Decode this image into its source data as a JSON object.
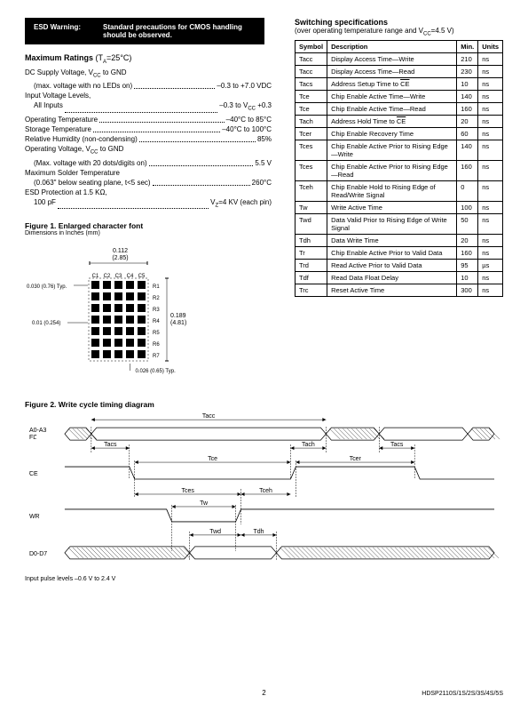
{
  "esd": {
    "label": "ESD Warning:",
    "text": "Standard precautions for CMOS handling should be observed."
  },
  "maxRatings": {
    "title": "Maximum Ratings",
    "cond": "(T",
    "condSub": "A",
    "condRest": "=25°C)",
    "lines": [
      {
        "label": "DC Supply Voltage, V",
        "sub": "CC",
        "labelRest": " to GND",
        "value": "",
        "hasDots": false
      },
      {
        "label": "(max. voltage with no LEDs on)",
        "value": "–0.3 to +7.0 VDC",
        "indent": true,
        "hasDots": true
      },
      {
        "label": "Input Voltage Levels,",
        "value": "",
        "hasDots": false
      },
      {
        "label": "All Inputs",
        "value": "–0.3 to V",
        "valueSub": "CC",
        "valueRest": " +0.3",
        "indent": true,
        "hasDots": true
      },
      {
        "label": "Operating Temperature",
        "value": "–40°C to 85°C",
        "hasDots": true
      },
      {
        "label": "Storage Temperature",
        "value": "–40°C to 100°C",
        "hasDots": true
      },
      {
        "label": "Relative Humidity (non-condensing)",
        "value": "85%",
        "hasDots": true
      },
      {
        "label": "Operating Voltage, V",
        "sub": "CC",
        "labelRest": " to GND",
        "value": "",
        "hasDots": false
      },
      {
        "label": "(Max. voltage with 20 dots/digits on)",
        "value": "5.5 V",
        "indent": true,
        "hasDots": true
      },
      {
        "label": "Maximum Solder Temperature",
        "value": "",
        "hasDots": false
      },
      {
        "label": "(0.063\" below seating plane, t<5 sec)",
        "value": "260°C",
        "indent": true,
        "hasDots": true
      },
      {
        "label": "ESD Protection at 1.5 KΩ,",
        "value": "",
        "hasDots": false
      },
      {
        "label": "100 pF",
        "value": "V",
        "valueSub": "Z",
        "valueRest": "=4 KV (each pin)",
        "indent": true,
        "hasDots": true
      }
    ]
  },
  "switching": {
    "title": "Switching specifications",
    "sub": "(over operating temperature range and V",
    "subSub": "CC",
    "subRest": "=4.5 V)",
    "headers": [
      "Symbol",
      "Description",
      "Min.",
      "Units"
    ],
    "rows": [
      {
        "sym": "Tacc",
        "desc": "Display Access Time—Write",
        "min": "210",
        "units": "ns"
      },
      {
        "sym": "Tacc",
        "desc": "Display Access Time—Read",
        "min": "230",
        "units": "ns"
      },
      {
        "sym": "Tacs",
        "desc": "Address Setup Time to CE",
        "min": "10",
        "units": "ns",
        "overline": "CE"
      },
      {
        "sym": "Tce",
        "desc": "Chip Enable Active Time—Write",
        "min": "140",
        "units": "ns"
      },
      {
        "sym": "Tce",
        "desc": "Chip Enable Active Time—Read",
        "min": "160",
        "units": "ns"
      },
      {
        "sym": "Tach",
        "desc": "Address Hold Time to CE",
        "min": "20",
        "units": "ns",
        "overline": "CE"
      },
      {
        "sym": "Tcer",
        "desc": "Chip Enable Recovery Time",
        "min": "60",
        "units": "ns"
      },
      {
        "sym": "Tces",
        "desc": "Chip Enable Active Prior to Rising Edge—Write",
        "min": "140",
        "units": "ns"
      },
      {
        "sym": "Tces",
        "desc": "Chip Enable Active Prior to Rising Edge—Read",
        "min": "160",
        "units": "ns"
      },
      {
        "sym": "Tceh",
        "desc": "Chip Enable Hold to Rising Edge of Read/Write Signal",
        "min": "0",
        "units": "ns"
      },
      {
        "sym": "Tw",
        "desc": "Write Active Time",
        "min": "100",
        "units": "ns"
      },
      {
        "sym": "Twd",
        "desc": "Data Valid Prior to Rising Edge of Write Signal",
        "min": "50",
        "units": "ns"
      },
      {
        "sym": "Tdh",
        "desc": "Data Write Time",
        "min": "20",
        "units": "ns"
      },
      {
        "sym": "Tr",
        "desc": "Chip Enable Active Prior to Valid Data",
        "min": "160",
        "units": "ns"
      },
      {
        "sym": "Trd",
        "desc": "Read Active Prior to Valid Data",
        "min": "95",
        "units": "µs"
      },
      {
        "sym": "Tdf",
        "desc": "Read Data Float Delay",
        "min": "10",
        "units": "ns"
      },
      {
        "sym": "Trc",
        "desc": "Reset Active Time",
        "min": "300",
        "units": "ns"
      }
    ]
  },
  "figure1": {
    "title": "Figure 1. Enlarged character font",
    "sub": "Dimensions in Inches (mm)",
    "labels": {
      "topDim": "0.112",
      "topDimMm": "(2.85)",
      "cols": [
        "C1",
        "C2",
        "C3",
        "C4",
        "C5"
      ],
      "rows": [
        "R1",
        "R2",
        "R3",
        "R4",
        "R5",
        "R6",
        "R7"
      ],
      "leftDim1": "0.030 (0.76) Typ.",
      "leftDim2": "0.01 (0.254)",
      "rightDim": "0.189",
      "rightDimMm": "(4.81)",
      "botDim": "0.026 (0.65) Typ."
    }
  },
  "figure2": {
    "title": "Figure 2. Write cycle timing diagram",
    "signals": {
      "a": "A0-A3",
      "fl": "FL",
      "ce": "CE",
      "wr": "WR",
      "d": "D0-D7"
    },
    "timingLabels": [
      "Tacc",
      "Tacs",
      "Tce",
      "Tach",
      "Tacs",
      "Tcer",
      "Tces",
      "Tceh",
      "Tw",
      "Twd",
      "Tdh"
    ],
    "footnote": "Input pulse levels –0.6 V to 2.4 V"
  },
  "pageNum": "2",
  "partNo": "HDSP2110S/1S/2S/3S/4S/5S"
}
